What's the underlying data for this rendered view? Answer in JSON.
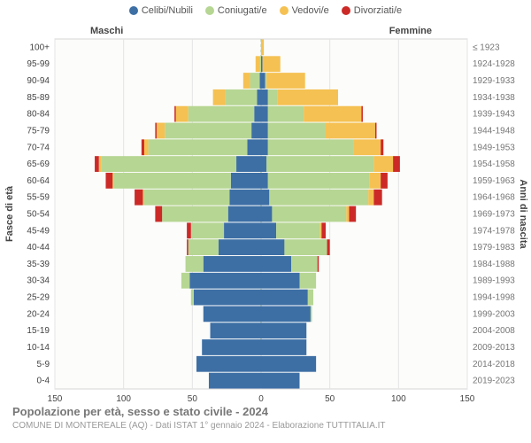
{
  "legend": {
    "items": [
      {
        "key": "celibi",
        "label": "Celibi/Nubili",
        "color": "#3d6fa5"
      },
      {
        "key": "coniugati",
        "label": "Coniugati/e",
        "color": "#b6d693"
      },
      {
        "key": "vedovi",
        "label": "Vedovi/e",
        "color": "#f5c152"
      },
      {
        "key": "divorziati",
        "label": "Divorziati/e",
        "color": "#cc2a27"
      }
    ]
  },
  "headers": {
    "left": "Maschi",
    "right": "Femmine"
  },
  "y_axis_title_left": "Fasce di età",
  "y_axis_title_right": "Anni di nascita",
  "title": "Popolazione per età, sesso e stato civile - 2024",
  "subtitle": "COMUNE DI MONTEREALE (AQ) - Dati ISTAT 1° gennaio 2024 - Elaborazione TUTTITALIA.IT",
  "chart": {
    "type": "population-pyramid-stacked",
    "background_color": "#fcfcfa",
    "grid_color": "#e4e4e4",
    "center_line_color": "#b8caa0",
    "center_line_dash": "3,3",
    "axis_font_size": 10,
    "title_font_size": 13,
    "label_font_size": 10,
    "xmax": 150,
    "xlim": [
      -150,
      150
    ],
    "xticks": [
      0,
      50,
      100,
      150
    ],
    "bar_gap": 1,
    "segments": [
      "celibi",
      "coniugati",
      "vedovi",
      "divorziati"
    ],
    "colors": {
      "celibi": "#3d6fa5",
      "coniugati": "#b6d693",
      "vedovi": "#f5c152",
      "divorziati": "#cc2a27"
    },
    "rows": [
      {
        "age": "100+",
        "birth": "≤ 1923",
        "m": {
          "celibi": 0,
          "coniugati": 0,
          "vedovi": 0,
          "divorziati": 0
        },
        "f": {
          "celibi": 0,
          "coniugati": 0,
          "vedovi": 2,
          "divorziati": 0
        }
      },
      {
        "age": "95-99",
        "birth": "1924-1928",
        "m": {
          "celibi": 0,
          "coniugati": 1,
          "vedovi": 3,
          "divorziati": 0
        },
        "f": {
          "celibi": 1,
          "coniugati": 0,
          "vedovi": 13,
          "divorziati": 0
        }
      },
      {
        "age": "90-94",
        "birth": "1929-1933",
        "m": {
          "celibi": 1,
          "coniugati": 7,
          "vedovi": 5,
          "divorziati": 0
        },
        "f": {
          "celibi": 3,
          "coniugati": 1,
          "vedovi": 28,
          "divorziati": 0
        }
      },
      {
        "age": "85-89",
        "birth": "1934-1938",
        "m": {
          "celibi": 3,
          "coniugati": 23,
          "vedovi": 9,
          "divorziati": 0
        },
        "f": {
          "celibi": 5,
          "coniugati": 7,
          "vedovi": 44,
          "divorziati": 0
        }
      },
      {
        "age": "80-84",
        "birth": "1939-1943",
        "m": {
          "celibi": 5,
          "coniugati": 48,
          "vedovi": 9,
          "divorziati": 1
        },
        "f": {
          "celibi": 5,
          "coniugati": 26,
          "vedovi": 42,
          "divorziati": 1
        }
      },
      {
        "age": "75-79",
        "birth": "1944-1948",
        "m": {
          "celibi": 7,
          "coniugati": 63,
          "vedovi": 6,
          "divorziati": 1
        },
        "f": {
          "celibi": 5,
          "coniugati": 42,
          "vedovi": 36,
          "divorziati": 1
        }
      },
      {
        "age": "70-74",
        "birth": "1949-1953",
        "m": {
          "celibi": 10,
          "coniugati": 72,
          "vedovi": 3,
          "divorziati": 2
        },
        "f": {
          "celibi": 5,
          "coniugati": 62,
          "vedovi": 20,
          "divorziati": 2
        }
      },
      {
        "age": "65-69",
        "birth": "1954-1958",
        "m": {
          "celibi": 18,
          "coniugati": 98,
          "vedovi": 2,
          "divorziati": 3
        },
        "f": {
          "celibi": 4,
          "coniugati": 78,
          "vedovi": 14,
          "divorziati": 5
        }
      },
      {
        "age": "60-64",
        "birth": "1959-1963",
        "m": {
          "celibi": 22,
          "coniugati": 85,
          "vedovi": 1,
          "divorziati": 5
        },
        "f": {
          "celibi": 5,
          "coniugati": 74,
          "vedovi": 8,
          "divorziati": 5
        }
      },
      {
        "age": "55-59",
        "birth": "1964-1968",
        "m": {
          "celibi": 23,
          "coniugati": 62,
          "vedovi": 1,
          "divorziati": 6
        },
        "f": {
          "celibi": 6,
          "coniugati": 72,
          "vedovi": 4,
          "divorziati": 6
        }
      },
      {
        "age": "50-54",
        "birth": "1969-1973",
        "m": {
          "celibi": 24,
          "coniugati": 48,
          "vedovi": 0,
          "divorziati": 5
        },
        "f": {
          "celibi": 8,
          "coniugati": 54,
          "vedovi": 2,
          "divorziati": 5
        }
      },
      {
        "age": "45-49",
        "birth": "1974-1978",
        "m": {
          "celibi": 27,
          "coniugati": 24,
          "vedovi": 0,
          "divorziati": 3
        },
        "f": {
          "celibi": 11,
          "coniugati": 32,
          "vedovi": 1,
          "divorziati": 3
        }
      },
      {
        "age": "40-44",
        "birth": "1979-1983",
        "m": {
          "celibi": 31,
          "coniugati": 22,
          "vedovi": 0,
          "divorziati": 1
        },
        "f": {
          "celibi": 17,
          "coniugati": 31,
          "vedovi": 0,
          "divorziati": 2
        }
      },
      {
        "age": "35-39",
        "birth": "1984-1988",
        "m": {
          "celibi": 42,
          "coniugati": 13,
          "vedovi": 0,
          "divorziati": 0
        },
        "f": {
          "celibi": 22,
          "coniugati": 19,
          "vedovi": 0,
          "divorziati": 1
        }
      },
      {
        "age": "30-34",
        "birth": "1989-1993",
        "m": {
          "celibi": 52,
          "coniugati": 6,
          "vedovi": 0,
          "divorziati": 0
        },
        "f": {
          "celibi": 28,
          "coniugati": 12,
          "vedovi": 0,
          "divorziati": 0
        }
      },
      {
        "age": "25-29",
        "birth": "1994-1998",
        "m": {
          "celibi": 49,
          "coniugati": 2,
          "vedovi": 0,
          "divorziati": 0
        },
        "f": {
          "celibi": 34,
          "coniugati": 4,
          "vedovi": 0,
          "divorziati": 0
        }
      },
      {
        "age": "20-24",
        "birth": "1999-2003",
        "m": {
          "celibi": 42,
          "coniugati": 0,
          "vedovi": 0,
          "divorziati": 0
        },
        "f": {
          "celibi": 36,
          "coniugati": 1,
          "vedovi": 0,
          "divorziati": 0
        }
      },
      {
        "age": "15-19",
        "birth": "2004-2008",
        "m": {
          "celibi": 37,
          "coniugati": 0,
          "vedovi": 0,
          "divorziati": 0
        },
        "f": {
          "celibi": 33,
          "coniugati": 0,
          "vedovi": 0,
          "divorziati": 0
        }
      },
      {
        "age": "10-14",
        "birth": "2009-2013",
        "m": {
          "celibi": 43,
          "coniugati": 0,
          "vedovi": 0,
          "divorziati": 0
        },
        "f": {
          "celibi": 33,
          "coniugati": 0,
          "vedovi": 0,
          "divorziati": 0
        }
      },
      {
        "age": "5-9",
        "birth": "2014-2018",
        "m": {
          "celibi": 47,
          "coniugati": 0,
          "vedovi": 0,
          "divorziati": 0
        },
        "f": {
          "celibi": 40,
          "coniugati": 0,
          "vedovi": 0,
          "divorziati": 0
        }
      },
      {
        "age": "0-4",
        "birth": "2019-2023",
        "m": {
          "celibi": 38,
          "coniugati": 0,
          "vedovi": 0,
          "divorziati": 0
        },
        "f": {
          "celibi": 28,
          "coniugati": 0,
          "vedovi": 0,
          "divorziati": 0
        }
      }
    ]
  }
}
